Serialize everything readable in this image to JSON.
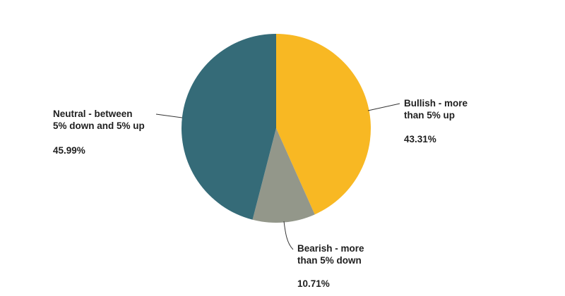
{
  "chart_data": {
    "type": "pie",
    "slices": [
      {
        "label_lines": [
          "Bullish - more",
          "than 5% up"
        ],
        "value": 43.31,
        "value_label": "43.31%",
        "color": "#f8b823"
      },
      {
        "label_lines": [
          "Bearish - more",
          "than 5% down"
        ],
        "value": 10.71,
        "value_label": "10.71%",
        "color": "#93978a"
      },
      {
        "label_lines": [
          "Neutral - between",
          "5% down and 5% up"
        ],
        "value": 45.99,
        "value_label": "45.99%",
        "color": "#356b78"
      }
    ]
  }
}
